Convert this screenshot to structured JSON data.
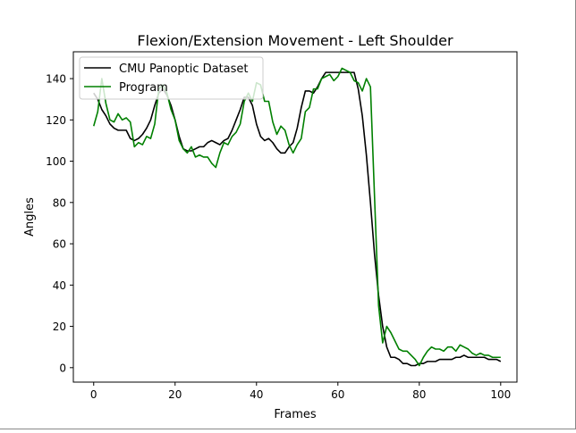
{
  "chart_data": {
    "type": "line",
    "title": "Flexion/Extension Movement - Left Shoulder",
    "xlabel": "Frames",
    "ylabel": "Angles",
    "xlim": [
      -5,
      104
    ],
    "ylim": [
      -7,
      153
    ],
    "xticks": [
      0,
      20,
      40,
      60,
      80,
      100
    ],
    "yticks": [
      0,
      20,
      40,
      60,
      80,
      100,
      120,
      140
    ],
    "grid": false,
    "legend_position": "upper left",
    "series": [
      {
        "name": "CMU Panoptic Dataset",
        "color": "#000000",
        "x": [
          0,
          1,
          2,
          3,
          4,
          5,
          6,
          7,
          8,
          9,
          10,
          11,
          12,
          13,
          14,
          15,
          16,
          17,
          18,
          19,
          20,
          21,
          22,
          23,
          24,
          25,
          26,
          27,
          28,
          29,
          30,
          31,
          32,
          33,
          34,
          35,
          36,
          37,
          38,
          39,
          40,
          41,
          42,
          43,
          44,
          45,
          46,
          47,
          48,
          49,
          50,
          51,
          52,
          53,
          54,
          55,
          56,
          57,
          58,
          59,
          60,
          61,
          62,
          63,
          64,
          65,
          66,
          67,
          68,
          69,
          70,
          71,
          72,
          73,
          74,
          75,
          76,
          77,
          78,
          79,
          80,
          81,
          82,
          83,
          84,
          85,
          86,
          87,
          88,
          89,
          90,
          91,
          92,
          93,
          94,
          95,
          96,
          97,
          98,
          99,
          100
        ],
        "y": [
          133,
          130,
          125,
          122,
          118,
          116,
          115,
          115,
          115,
          111,
          110,
          111,
          113,
          116,
          120,
          127,
          133,
          135,
          132,
          127,
          120,
          112,
          106,
          105,
          105,
          106,
          107,
          107,
          109,
          110,
          109,
          108,
          110,
          111,
          115,
          120,
          125,
          131,
          131,
          127,
          118,
          112,
          110,
          111,
          109,
          106,
          104,
          104,
          107,
          109,
          116,
          126,
          134,
          134,
          133,
          136,
          140,
          143,
          143,
          143,
          143,
          143,
          143,
          143,
          143,
          135,
          122,
          103,
          80,
          55,
          35,
          20,
          10,
          5,
          5,
          4,
          2,
          2,
          1,
          1,
          2,
          2,
          3,
          3,
          3,
          4,
          4,
          4,
          4,
          5,
          5,
          6,
          5,
          5,
          5,
          5,
          5,
          4,
          4,
          4,
          3
        ]
      },
      {
        "name": "Program",
        "color": "#008000",
        "x": [
          0,
          1,
          2,
          3,
          4,
          5,
          6,
          7,
          8,
          9,
          10,
          11,
          12,
          13,
          14,
          15,
          16,
          17,
          18,
          19,
          20,
          21,
          22,
          23,
          24,
          25,
          26,
          27,
          28,
          29,
          30,
          31,
          32,
          33,
          34,
          35,
          36,
          37,
          38,
          39,
          40,
          41,
          42,
          43,
          44,
          45,
          46,
          47,
          48,
          49,
          50,
          51,
          52,
          53,
          54,
          55,
          56,
          57,
          58,
          59,
          60,
          61,
          62,
          63,
          64,
          65,
          66,
          67,
          68,
          69,
          70,
          71,
          72,
          73,
          74,
          75,
          76,
          77,
          78,
          79,
          80,
          81,
          82,
          83,
          84,
          85,
          86,
          87,
          88,
          89,
          90,
          91,
          92,
          93,
          94,
          95,
          96,
          97,
          98,
          99,
          100
        ],
        "y": [
          117,
          124,
          140,
          128,
          120,
          119,
          123,
          120,
          121,
          119,
          107,
          109,
          108,
          112,
          111,
          118,
          135,
          137,
          133,
          125,
          120,
          110,
          106,
          104,
          107,
          102,
          103,
          102,
          102,
          99,
          97,
          104,
          109,
          108,
          112,
          114,
          118,
          129,
          133,
          129,
          138,
          137,
          129,
          129,
          119,
          113,
          117,
          115,
          108,
          104,
          108,
          111,
          124,
          126,
          135,
          135,
          140,
          141,
          142,
          139,
          141,
          145,
          144,
          143,
          139,
          138,
          134,
          140,
          136,
          83,
          30,
          12,
          20,
          17,
          13,
          9,
          8,
          8,
          6,
          4,
          1,
          5,
          8,
          10,
          9,
          9,
          8,
          10,
          10,
          8,
          11,
          10,
          9,
          7,
          6,
          7,
          6,
          6,
          5,
          5,
          5
        ]
      }
    ]
  }
}
